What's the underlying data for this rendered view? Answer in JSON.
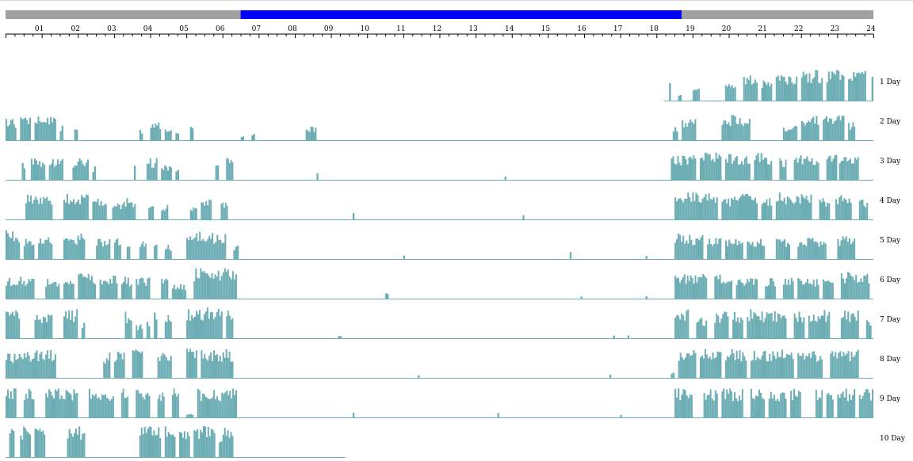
{
  "chart_data": {
    "type": "bar",
    "x_range": [
      0,
      24
    ],
    "hour_ticks": [
      "01",
      "02",
      "03",
      "04",
      "05",
      "06",
      "07",
      "08",
      "09",
      "10",
      "11",
      "12",
      "13",
      "14",
      "15",
      "16",
      "17",
      "18",
      "19",
      "20",
      "21",
      "22",
      "23",
      "24"
    ],
    "light_dark_bar": [
      {
        "state": "dark",
        "start": 0,
        "end": 6.5
      },
      {
        "state": "light",
        "start": 6.5,
        "end": 18.7
      },
      {
        "state": "dark",
        "start": 18.7,
        "end": 24
      }
    ],
    "rows": [
      {
        "label": "1 Day",
        "record_start": 18.2,
        "record_end": 24,
        "bursts": [
          [
            18.35,
            18.4,
            0.5
          ],
          [
            18.6,
            18.7,
            0.2
          ],
          [
            19.0,
            19.2,
            0.4
          ],
          [
            19.9,
            20.2,
            0.5
          ],
          [
            20.4,
            20.8,
            0.7
          ],
          [
            20.9,
            21.2,
            0.6
          ],
          [
            21.3,
            21.9,
            0.8
          ],
          [
            22.0,
            22.6,
            0.85
          ],
          [
            22.7,
            23.2,
            0.9
          ],
          [
            23.3,
            23.8,
            0.85
          ],
          [
            23.95,
            24.0,
            0.7
          ]
        ]
      },
      {
        "label": "2 Day",
        "record_start": 0,
        "record_end": 24,
        "bursts": [
          [
            0,
            0.3,
            0.6
          ],
          [
            0.4,
            0.7,
            0.7
          ],
          [
            0.8,
            1.4,
            0.7
          ],
          [
            1.5,
            1.6,
            0.4
          ],
          [
            1.9,
            2.0,
            0.4
          ],
          [
            3.7,
            3.8,
            0.3
          ],
          [
            4.0,
            4.3,
            0.5
          ],
          [
            4.4,
            4.6,
            0.4
          ],
          [
            4.7,
            4.8,
            0.3
          ],
          [
            5.1,
            5.2,
            0.4
          ],
          [
            6.5,
            6.6,
            0.15
          ],
          [
            6.8,
            6.9,
            0.2
          ],
          [
            8.3,
            8.6,
            0.4
          ],
          [
            18.45,
            18.6,
            0.4
          ],
          [
            18.7,
            19.1,
            0.6
          ],
          [
            19.8,
            20.6,
            0.7
          ],
          [
            21.5,
            21.9,
            0.4
          ],
          [
            22.0,
            22.5,
            0.7
          ],
          [
            22.6,
            23.2,
            0.7
          ],
          [
            23.3,
            23.5,
            0.5
          ]
        ]
      },
      {
        "label": "3 Day",
        "record_start": 0,
        "record_end": 24,
        "bursts": [
          [
            0.45,
            0.55,
            0.5
          ],
          [
            0.7,
            1.1,
            0.6
          ],
          [
            1.2,
            1.6,
            0.6
          ],
          [
            1.85,
            2.3,
            0.6
          ],
          [
            2.4,
            2.5,
            0.4
          ],
          [
            3.55,
            3.6,
            0.4
          ],
          [
            3.9,
            4.2,
            0.6
          ],
          [
            4.3,
            4.6,
            0.4
          ],
          [
            4.7,
            4.8,
            0.3
          ],
          [
            5.8,
            5.9,
            0.4
          ],
          [
            6.1,
            6.3,
            0.6
          ],
          [
            8.6,
            8.65,
            0.25
          ],
          [
            13.8,
            13.85,
            0.15
          ],
          [
            18.4,
            19.1,
            0.7
          ],
          [
            19.2,
            19.8,
            0.75
          ],
          [
            19.9,
            20.6,
            0.75
          ],
          [
            20.7,
            21.2,
            0.75
          ],
          [
            21.4,
            21.6,
            0.6
          ],
          [
            21.8,
            22.5,
            0.7
          ],
          [
            22.7,
            23.0,
            0.7
          ],
          [
            23.05,
            23.6,
            0.75
          ]
        ]
      },
      {
        "label": "4 Day",
        "record_start": 0,
        "record_end": 24,
        "bursts": [
          [
            0.55,
            1.3,
            0.7
          ],
          [
            1.6,
            2.3,
            0.7
          ],
          [
            2.4,
            2.8,
            0.6
          ],
          [
            2.95,
            3.3,
            0.5
          ],
          [
            3.3,
            3.6,
            0.6
          ],
          [
            3.95,
            4.1,
            0.4
          ],
          [
            4.3,
            4.5,
            0.4
          ],
          [
            5.1,
            5.3,
            0.4
          ],
          [
            5.4,
            5.7,
            0.6
          ],
          [
            5.95,
            6.15,
            0.5
          ],
          [
            9.6,
            9.65,
            0.2
          ],
          [
            14.3,
            14.35,
            0.2
          ],
          [
            18.5,
            19.7,
            0.75
          ],
          [
            19.8,
            20.1,
            0.6
          ],
          [
            20.1,
            20.8,
            0.7
          ],
          [
            20.9,
            21.2,
            0.6
          ],
          [
            21.3,
            22.3,
            0.75
          ],
          [
            22.5,
            22.8,
            0.6
          ],
          [
            22.95,
            23.4,
            0.7
          ],
          [
            23.6,
            23.85,
            0.6
          ]
        ]
      },
      {
        "label": "5 Day",
        "record_start": 0,
        "record_end": 24,
        "bursts": [
          [
            0,
            0.4,
            0.8
          ],
          [
            0.5,
            0.8,
            0.6
          ],
          [
            0.9,
            1.3,
            0.6
          ],
          [
            1.6,
            2.2,
            0.7
          ],
          [
            2.5,
            2.9,
            0.6
          ],
          [
            3.0,
            3.2,
            0.6
          ],
          [
            3.35,
            3.45,
            0.4
          ],
          [
            3.7,
            3.9,
            0.5
          ],
          [
            4.1,
            4.2,
            0.4
          ],
          [
            4.4,
            4.6,
            0.4
          ],
          [
            5.0,
            6.1,
            0.75
          ],
          [
            6.3,
            6.45,
            0.4
          ],
          [
            11.0,
            11.05,
            0.1
          ],
          [
            15.6,
            15.65,
            0.2
          ],
          [
            17.7,
            17.75,
            0.1
          ],
          [
            18.5,
            19.3,
            0.7
          ],
          [
            19.4,
            19.8,
            0.65
          ],
          [
            19.9,
            20.4,
            0.6
          ],
          [
            20.5,
            21.0,
            0.6
          ],
          [
            21.3,
            21.7,
            0.6
          ],
          [
            21.9,
            22.7,
            0.6
          ],
          [
            23.0,
            23.5,
            0.65
          ]
        ]
      },
      {
        "label": "6 Day",
        "record_start": 0,
        "record_end": 24,
        "bursts": [
          [
            0,
            0.8,
            0.6
          ],
          [
            1.1,
            1.5,
            0.6
          ],
          [
            1.6,
            1.9,
            0.6
          ],
          [
            2.0,
            2.5,
            0.7
          ],
          [
            2.6,
            3.1,
            0.7
          ],
          [
            3.2,
            3.5,
            0.6
          ],
          [
            3.6,
            4.0,
            0.6
          ],
          [
            4.3,
            4.5,
            0.6
          ],
          [
            4.6,
            5.0,
            0.4
          ],
          [
            5.2,
            6.4,
            0.85
          ],
          [
            10.5,
            10.6,
            0.2
          ],
          [
            15.9,
            15.95,
            0.1
          ],
          [
            17.7,
            17.75,
            0.1
          ],
          [
            18.5,
            19.4,
            0.7
          ],
          [
            19.6,
            20.1,
            0.7
          ],
          [
            20.2,
            20.8,
            0.6
          ],
          [
            21.0,
            21.3,
            0.6
          ],
          [
            21.5,
            21.8,
            0.6
          ],
          [
            21.9,
            22.5,
            0.6
          ],
          [
            22.6,
            22.9,
            0.6
          ],
          [
            23.1,
            23.9,
            0.75
          ]
        ]
      },
      {
        "label": "7 Day",
        "record_start": 0,
        "record_end": 24,
        "bursts": [
          [
            0,
            0.4,
            0.8
          ],
          [
            0.8,
            1.3,
            0.75
          ],
          [
            1.6,
            2.0,
            0.8
          ],
          [
            2.1,
            2.2,
            0.5
          ],
          [
            3.3,
            3.5,
            0.75
          ],
          [
            3.6,
            3.8,
            0.4
          ],
          [
            3.9,
            4.0,
            0.5
          ],
          [
            4.1,
            4.2,
            0.8
          ],
          [
            4.4,
            4.6,
            0.75
          ],
          [
            5.0,
            6.0,
            0.85
          ],
          [
            6.1,
            6.3,
            0.8
          ],
          [
            9.2,
            9.3,
            0.1
          ],
          [
            16.8,
            16.85,
            0.1
          ],
          [
            17.2,
            17.25,
            0.1
          ],
          [
            18.5,
            18.9,
            0.8
          ],
          [
            19.1,
            19.4,
            0.6
          ],
          [
            19.6,
            20.0,
            0.75
          ],
          [
            20.1,
            20.4,
            0.75
          ],
          [
            20.5,
            21.3,
            0.8
          ],
          [
            21.3,
            21.6,
            0.7
          ],
          [
            21.8,
            22.1,
            0.75
          ],
          [
            22.2,
            22.8,
            0.8
          ],
          [
            23.1,
            23.6,
            0.8
          ],
          [
            23.8,
            23.95,
            0.5
          ]
        ]
      },
      {
        "label": "8 Day",
        "record_start": 0,
        "record_end": 24,
        "bursts": [
          [
            0,
            0.5,
            0.7
          ],
          [
            0.5,
            1.4,
            0.8
          ],
          [
            2.7,
            2.9,
            0.7
          ],
          [
            3.0,
            3.3,
            0.8
          ],
          [
            3.5,
            3.8,
            0.8
          ],
          [
            4.2,
            4.6,
            0.75
          ],
          [
            5.0,
            5.3,
            0.8
          ],
          [
            5.4,
            6.3,
            0.8
          ],
          [
            11.4,
            11.45,
            0.1
          ],
          [
            16.7,
            16.75,
            0.1
          ],
          [
            18.4,
            18.5,
            0.2
          ],
          [
            18.6,
            19.1,
            0.8
          ],
          [
            19.2,
            19.8,
            0.8
          ],
          [
            19.9,
            20.5,
            0.8
          ],
          [
            20.6,
            21.2,
            0.8
          ],
          [
            21.2,
            21.8,
            0.8
          ],
          [
            21.9,
            22.6,
            0.8
          ],
          [
            22.8,
            23.6,
            0.8
          ]
        ]
      },
      {
        "label": "9 Day",
        "record_start": 0,
        "record_end": 24,
        "bursts": [
          [
            0,
            0.3,
            0.8
          ],
          [
            0.5,
            0.8,
            0.8
          ],
          [
            1.1,
            2.0,
            0.8
          ],
          [
            2.3,
            3.0,
            0.8
          ],
          [
            3.2,
            3.4,
            0.8
          ],
          [
            3.6,
            4.0,
            0.8
          ],
          [
            4.2,
            4.4,
            0.8
          ],
          [
            4.6,
            4.8,
            0.8
          ],
          [
            5.0,
            5.2,
            0.1
          ],
          [
            5.3,
            6.1,
            0.8
          ],
          [
            6.1,
            6.4,
            0.8
          ],
          [
            9.6,
            9.65,
            0.15
          ],
          [
            13.6,
            13.65,
            0.15
          ],
          [
            17.0,
            17.05,
            0.1
          ],
          [
            18.5,
            19.0,
            0.8
          ],
          [
            19.3,
            19.7,
            0.8
          ],
          [
            19.8,
            20.4,
            0.8
          ],
          [
            20.6,
            21.0,
            0.8
          ],
          [
            21.1,
            21.6,
            0.8
          ],
          [
            21.7,
            22.0,
            0.8
          ],
          [
            22.4,
            22.6,
            0.8
          ],
          [
            22.7,
            22.9,
            0.8
          ],
          [
            23.0,
            23.5,
            0.8
          ],
          [
            23.6,
            24.0,
            0.8
          ]
        ]
      },
      {
        "label": "10 Day",
        "record_start": 0,
        "record_end": 9.4,
        "bursts": [
          [
            0.1,
            0.25,
            0.85
          ],
          [
            0.4,
            0.7,
            0.85
          ],
          [
            0.8,
            1.1,
            0.85
          ],
          [
            1.7,
            2.2,
            0.85
          ],
          [
            3.7,
            4.3,
            0.85
          ],
          [
            4.4,
            4.7,
            0.85
          ],
          [
            4.8,
            5.1,
            0.85
          ],
          [
            5.2,
            5.8,
            0.85
          ],
          [
            5.9,
            6.0,
            0.5
          ],
          [
            6.0,
            6.3,
            0.85
          ]
        ]
      }
    ],
    "colors": {
      "activity": "#6daeb5",
      "baseline": "#6daeb5",
      "dark": "#a0a0a0",
      "light": "#0000ff"
    }
  }
}
